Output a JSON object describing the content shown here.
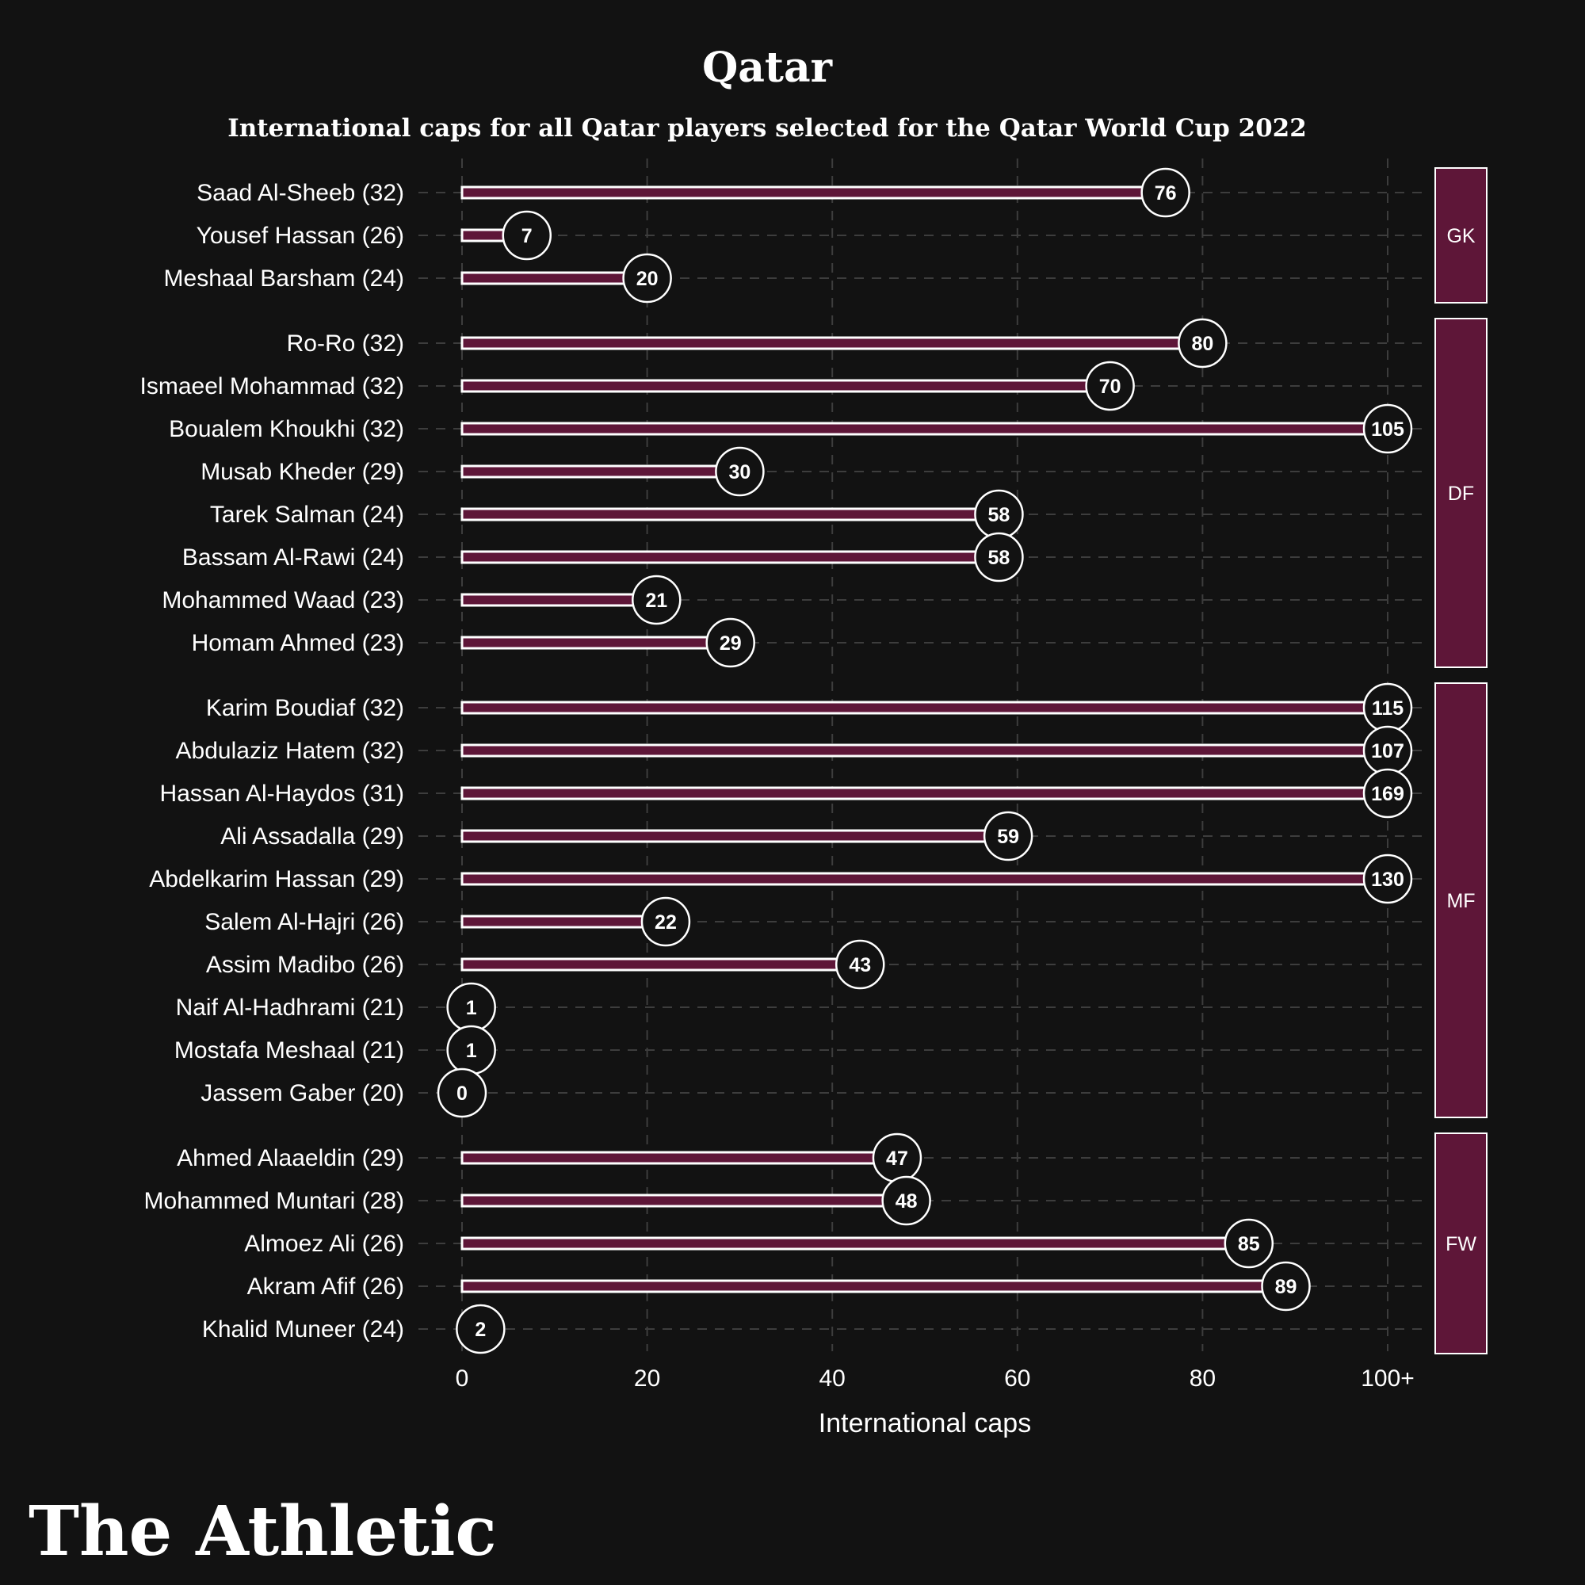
{
  "chart_data": {
    "type": "bar",
    "orientation": "horizontal",
    "title": "Qatar",
    "subtitle": "International caps for all Qatar players selected for the Qatar World Cup 2022",
    "xlabel": "International caps",
    "xlim": [
      0,
      100
    ],
    "cap_note": "values above 100 are shown at the 100+ position",
    "x_ticks": [
      "0",
      "20",
      "40",
      "60",
      "80",
      "100+"
    ],
    "x_tick_values": [
      0,
      20,
      40,
      60,
      80,
      100
    ],
    "grid": true,
    "groups": [
      {
        "label": "GK",
        "players": [
          {
            "name": "Saad Al-Sheeb (32)",
            "caps": 76
          },
          {
            "name": "Yousef Hassan (26)",
            "caps": 7
          },
          {
            "name": "Meshaal Barsham (24)",
            "caps": 20
          }
        ]
      },
      {
        "label": "DF",
        "players": [
          {
            "name": "Ro-Ro (32)",
            "caps": 80
          },
          {
            "name": "Ismaeel Mohammad (32)",
            "caps": 70
          },
          {
            "name": "Boualem Khoukhi (32)",
            "caps": 105
          },
          {
            "name": "Musab Kheder (29)",
            "caps": 30
          },
          {
            "name": "Tarek Salman (24)",
            "caps": 58
          },
          {
            "name": "Bassam Al-Rawi (24)",
            "caps": 58
          },
          {
            "name": "Mohammed Waad (23)",
            "caps": 21
          },
          {
            "name": "Homam Ahmed (23)",
            "caps": 29
          }
        ]
      },
      {
        "label": "MF",
        "players": [
          {
            "name": "Karim Boudiaf (32)",
            "caps": 115
          },
          {
            "name": "Abdulaziz Hatem (32)",
            "caps": 107
          },
          {
            "name": "Hassan Al-Haydos (31)",
            "caps": 169
          },
          {
            "name": "Ali Assadalla (29)",
            "caps": 59
          },
          {
            "name": "Abdelkarim Hassan (29)",
            "caps": 130
          },
          {
            "name": "Salem Al-Hajri (26)",
            "caps": 22
          },
          {
            "name": "Assim Madibo (26)",
            "caps": 43
          },
          {
            "name": "Naif Al-Hadhrami (21)",
            "caps": 1
          },
          {
            "name": "Mostafa Meshaal (21)",
            "caps": 1
          },
          {
            "name": "Jassem Gaber (20)",
            "caps": 0
          }
        ]
      },
      {
        "label": "FW",
        "players": [
          {
            "name": "Ahmed Alaaeldin (29)",
            "caps": 47
          },
          {
            "name": "Mohammed Muntari (28)",
            "caps": 48
          },
          {
            "name": "Almoez Ali (26)",
            "caps": 85
          },
          {
            "name": "Akram Afif (26)",
            "caps": 89
          },
          {
            "name": "Khalid Muneer (24)",
            "caps": 2
          }
        ]
      }
    ]
  },
  "brand": "The Athletic",
  "colors": {
    "background": "#121212",
    "bar": "#5e1638",
    "bar_outline": "#ffffff",
    "group_box": "#5e1638",
    "grid": "#3d3d3d",
    "text": "#ffffff"
  }
}
